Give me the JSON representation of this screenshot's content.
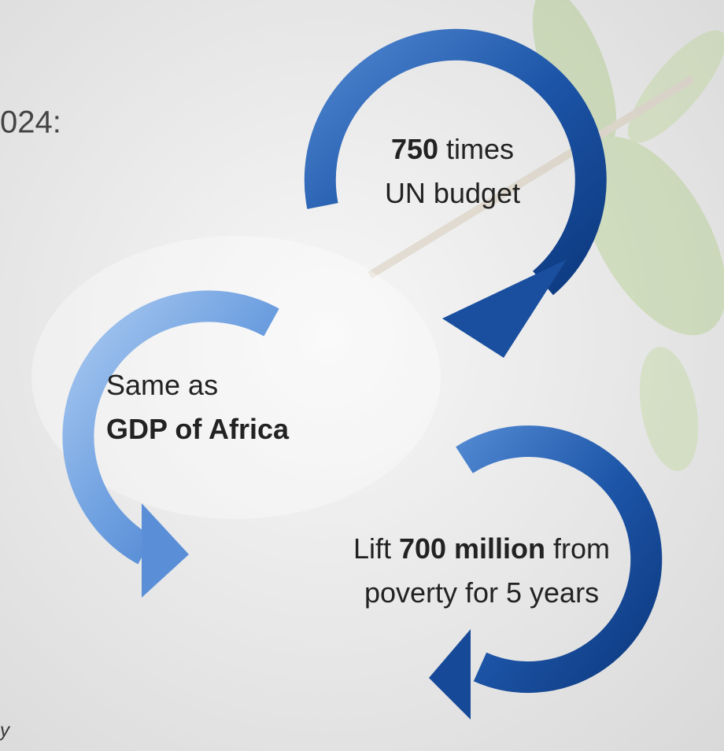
{
  "header": {
    "title_fragment": "024:"
  },
  "callouts": [
    {
      "align": "middle",
      "lines": [
        [
          {
            "text": "750",
            "bold": true
          },
          {
            "text": "times",
            "bold": false
          }
        ],
        [
          {
            "text": "UN budget",
            "bold": false
          }
        ]
      ]
    },
    {
      "align": "start",
      "lines": [
        [
          {
            "text": "Same as",
            "bold": false
          }
        ],
        [
          {
            "text": "GDP of Africa",
            "bold": true
          }
        ]
      ]
    },
    {
      "align": "middle",
      "lines": [
        [
          {
            "text": "Lift",
            "bold": false
          },
          {
            "text": "700 million",
            "bold": true
          },
          {
            "text": "from",
            "bold": false
          }
        ],
        [
          {
            "text": "poverty for 5 years",
            "bold": false
          }
        ]
      ]
    }
  ],
  "footer": {
    "fragment": "y"
  }
}
